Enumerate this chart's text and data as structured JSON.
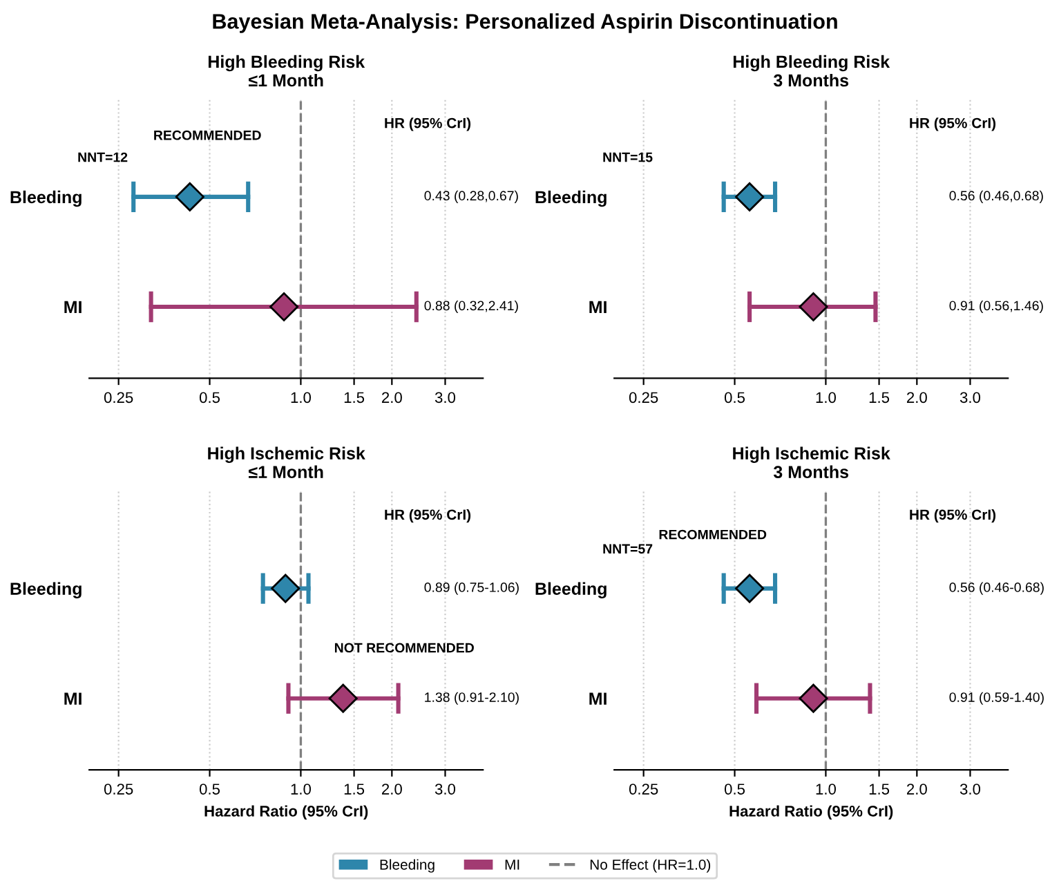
{
  "chart_data": [
    {
      "type": "other",
      "title": "Bayesian Meta-Analysis: Personalized Aspirin Discontinuation"
    },
    {
      "type": "scatter",
      "orientation": "horizontal",
      "title": "High Bleeding Risk\n≤1 Month",
      "categories": [
        "Bleeding",
        "MI"
      ],
      "log": "x",
      "xlim": [
        0.2,
        4.0
      ],
      "xticks": [
        0.25,
        0.5,
        {
          "value": 1.0,
          "label": "1.0"
        },
        1.5,
        {
          "value": 2.0,
          "label": "2.0"
        },
        {
          "value": 3.0,
          "label": "3.0"
        }
      ],
      "grid": "x",
      "marker": "diamond",
      "legend": "bottom",
      "series": [
        {
          "name": "Bleeding",
          "color": "#2e86ab",
          "values": [
            0.43,
            null
          ],
          "errors": [
            [
              0.28,
              0.67
            ],
            null
          ]
        },
        {
          "name": "MI",
          "color": "#a23b72",
          "values": [
            null,
            0.88
          ],
          "errors": [
            null,
            [
              0.32,
              2.41
            ]
          ]
        }
      ],
      "ref_lines": [
        {
          "axis": "x",
          "value": 1.0,
          "label": "No Effect (HR=1.0)",
          "color": "#808080",
          "line_style": "dashed"
        }
      ],
      "annotations": [
        "HR (95% CrI)",
        "0.43 (0.28,0.67)",
        "0.88 (0.32,2.41)",
        "NNT=12",
        "RECOMMENDED"
      ]
    },
    {
      "type": "scatter",
      "orientation": "horizontal",
      "title": "High Bleeding Risk\n3 Months",
      "categories": [
        "Bleeding",
        "MI"
      ],
      "log": "x",
      "xlim": [
        0.2,
        4.0
      ],
      "xticks": [
        0.25,
        0.5,
        {
          "value": 1.0,
          "label": "1.0"
        },
        1.5,
        {
          "value": 2.0,
          "label": "2.0"
        },
        {
          "value": 3.0,
          "label": "3.0"
        }
      ],
      "grid": "x",
      "marker": "diamond",
      "series": [
        {
          "color": "#2e86ab",
          "values": [
            0.56,
            null
          ],
          "errors": [
            [
              0.46,
              0.68
            ],
            null
          ]
        },
        {
          "color": "#a23b72",
          "values": [
            null,
            0.91
          ],
          "errors": [
            null,
            [
              0.56,
              1.46
            ]
          ]
        }
      ],
      "ref_lines": [
        {
          "axis": "x",
          "value": 1.0,
          "color": "#808080",
          "line_style": "dashed"
        }
      ],
      "annotations": [
        "HR (95% CrI)",
        "0.56 (0.46,0.68)",
        "0.91 (0.56,1.46)",
        "NNT=15"
      ]
    },
    {
      "type": "scatter",
      "orientation": "horizontal",
      "title": "High Ischemic Risk\n≤1 Month",
      "xlabel": "Hazard Ratio (95% CrI)",
      "categories": [
        "Bleeding",
        "MI"
      ],
      "log": "x",
      "xlim": [
        0.2,
        4.0
      ],
      "xticks": [
        0.25,
        0.5,
        {
          "value": 1.0,
          "label": "1.0"
        },
        1.5,
        {
          "value": 2.0,
          "label": "2.0"
        },
        {
          "value": 3.0,
          "label": "3.0"
        }
      ],
      "grid": "x",
      "marker": "diamond",
      "series": [
        {
          "color": "#2e86ab",
          "values": [
            0.89,
            null
          ],
          "errors": [
            [
              0.75,
              1.06
            ],
            null
          ]
        },
        {
          "color": "#a23b72",
          "values": [
            null,
            1.38
          ],
          "errors": [
            null,
            [
              0.91,
              2.1
            ]
          ]
        }
      ],
      "ref_lines": [
        {
          "axis": "x",
          "value": 1.0,
          "color": "#808080",
          "line_style": "dashed"
        }
      ],
      "annotations": [
        "HR (95% CrI)",
        "0.89 (0.75-1.06)",
        "1.38 (0.91-2.10)",
        "NOT RECOMMENDED"
      ]
    },
    {
      "type": "scatter",
      "orientation": "horizontal",
      "title": "High Ischemic Risk\n3 Months",
      "xlabel": "Hazard Ratio (95% CrI)",
      "categories": [
        "Bleeding",
        "MI"
      ],
      "log": "x",
      "xlim": [
        0.2,
        4.0
      ],
      "xticks": [
        0.25,
        0.5,
        {
          "value": 1.0,
          "label": "1.0"
        },
        1.5,
        {
          "value": 2.0,
          "label": "2.0"
        },
        {
          "value": 3.0,
          "label": "3.0"
        }
      ],
      "grid": "x",
      "marker": "diamond",
      "series": [
        {
          "color": "#2e86ab",
          "values": [
            0.56,
            null
          ],
          "errors": [
            [
              0.46,
              0.68
            ],
            null
          ]
        },
        {
          "color": "#a23b72",
          "values": [
            null,
            0.91
          ],
          "errors": [
            null,
            [
              0.59,
              1.4
            ]
          ]
        }
      ],
      "ref_lines": [
        {
          "axis": "x",
          "value": 1.0,
          "color": "#808080",
          "line_style": "dashed"
        }
      ],
      "annotations": [
        "HR (95% CrI)",
        "0.56 (0.46-0.68)",
        "0.91 (0.59-1.40)",
        "NNT=57",
        "RECOMMENDED"
      ]
    }
  ]
}
